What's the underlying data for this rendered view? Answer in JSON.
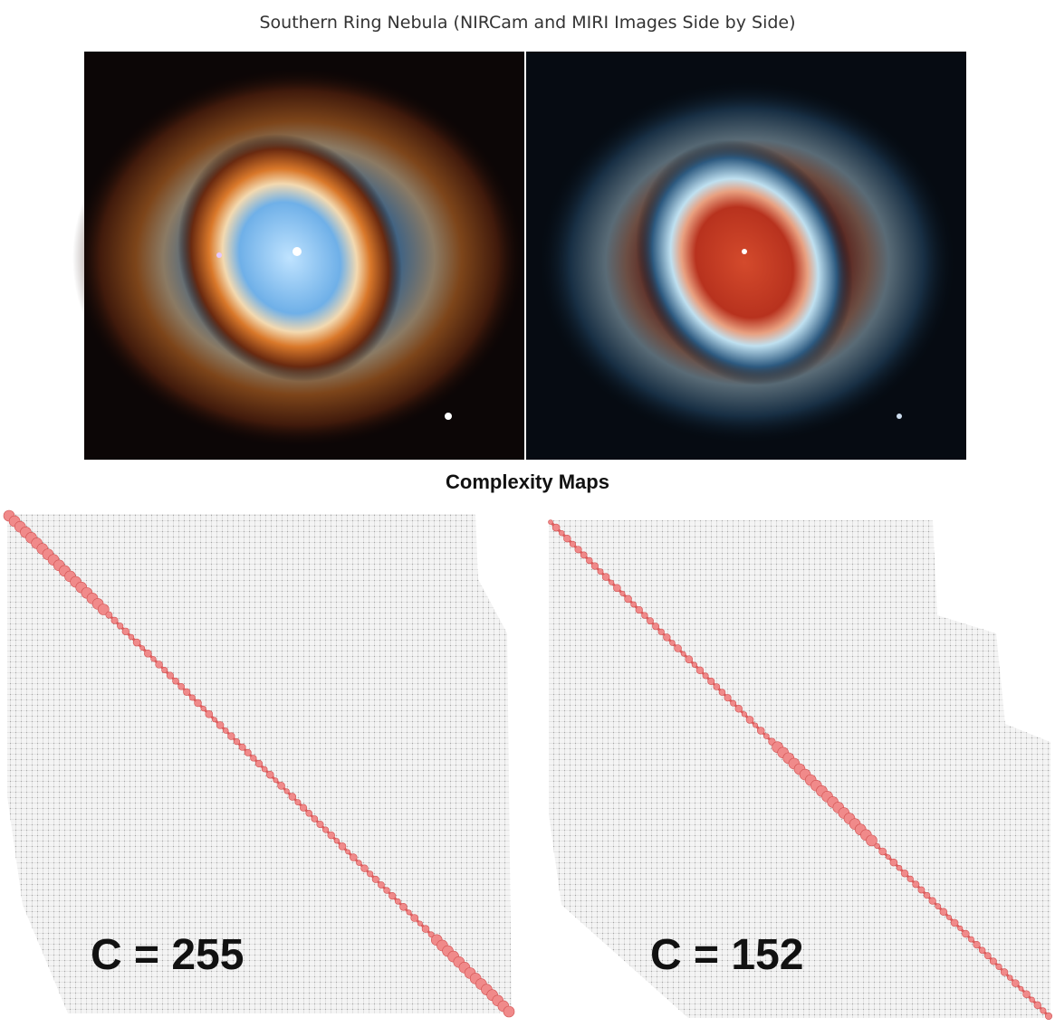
{
  "header": {
    "title": "Southern Ring Nebula (NIRCam and MIRI Images Side by Side)"
  },
  "section": {
    "title": "Complexity Maps"
  },
  "maps": [
    {
      "label": "C = 255"
    },
    {
      "label": "C = 152"
    }
  ]
}
